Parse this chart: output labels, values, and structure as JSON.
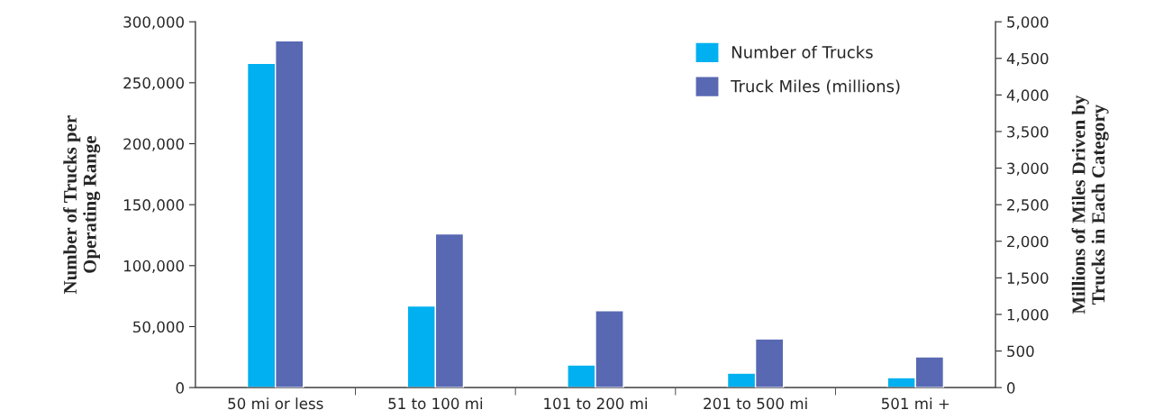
{
  "chart_data": {
    "type": "bar",
    "categories": [
      "50 mi or less",
      "51 to 100 mi",
      "101 to 200 mi",
      "201 to 500 mi",
      "501 mi +"
    ],
    "ylabel": "Number of Trucks per\nOperating Range",
    "y2label": "Millions of Miles Driven by\nTrucks in Each Category",
    "series": [
      {
        "name": "Number of Trucks",
        "color": "#00b0f0",
        "values": [
          266000,
          67000,
          18500,
          11800,
          8100
        ]
      },
      {
        "name": "Truck Miles (millions)",
        "color": "#5868b2",
        "axis": "y2",
        "values": [
          4740,
          2100,
          1050,
          665,
          420
        ]
      }
    ],
    "ylim": [
      0,
      300000
    ],
    "yticks": [
      {
        "value": 0,
        "label": "0"
      },
      {
        "value": 50000,
        "label": "50,000"
      },
      {
        "value": 100000,
        "label": "100,000"
      },
      {
        "value": 150000,
        "label": "150,000"
      },
      {
        "value": 200000,
        "label": "200,000"
      },
      {
        "value": 250000,
        "label": "250,000"
      },
      {
        "value": 300000,
        "label": "300,000"
      }
    ],
    "y2lim": [
      0,
      5000
    ],
    "y2ticks": [
      {
        "value": 0,
        "label": "0"
      },
      {
        "value": 500,
        "label": "500"
      },
      {
        "value": 1000,
        "label": "1,000"
      },
      {
        "value": 1500,
        "label": "1,500"
      },
      {
        "value": 2000,
        "label": "2,000"
      },
      {
        "value": 2500,
        "label": "2,500"
      },
      {
        "value": 3000,
        "label": "3,000"
      },
      {
        "value": 3500,
        "label": "3,500"
      },
      {
        "value": 4000,
        "label": "4,000"
      },
      {
        "value": 4500,
        "label": "4,500"
      },
      {
        "value": 5000,
        "label": "5,000"
      }
    ],
    "grid": false,
    "legend": "top right"
  }
}
